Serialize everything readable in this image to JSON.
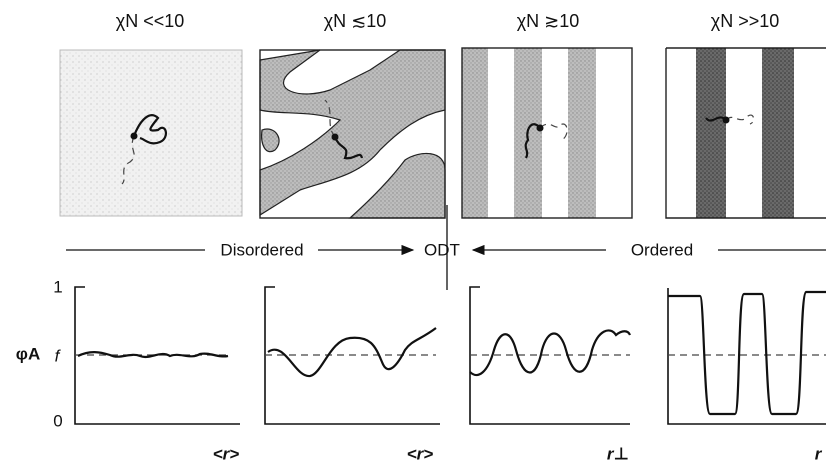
{
  "panels": [
    {
      "title": "χN <<10",
      "axis_label": "<r>"
    },
    {
      "title": "χN ≲10",
      "axis_label": "<r>"
    },
    {
      "title": "χN ≳10",
      "axis_label": "r⊥"
    },
    {
      "title": "χN >>10",
      "axis_label": "r"
    }
  ],
  "phase_labels": {
    "disordered": "Disordered",
    "transition": "ODT",
    "ordered": "Ordered"
  },
  "y_axis": {
    "top": "1",
    "bottom": "0",
    "name": "φA",
    "mean": "f"
  }
}
